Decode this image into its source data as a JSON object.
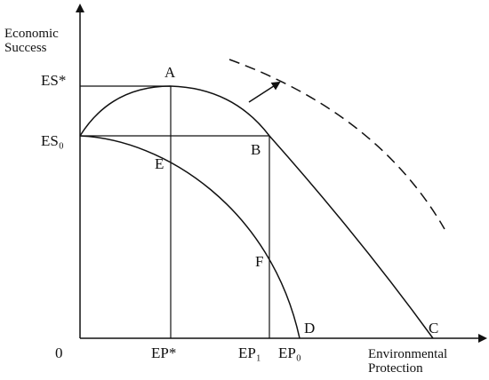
{
  "axes": {
    "y_label": [
      "Economic",
      "Success"
    ],
    "x_label": [
      "Environmental",
      "Protection"
    ],
    "origin": "0"
  },
  "y_ticks": [
    "ES*",
    "ES₀"
  ],
  "x_ticks": [
    "EP*",
    "EP₁",
    "EP₀"
  ],
  "points": [
    "A",
    "B",
    "C",
    "D",
    "E",
    "F"
  ]
}
